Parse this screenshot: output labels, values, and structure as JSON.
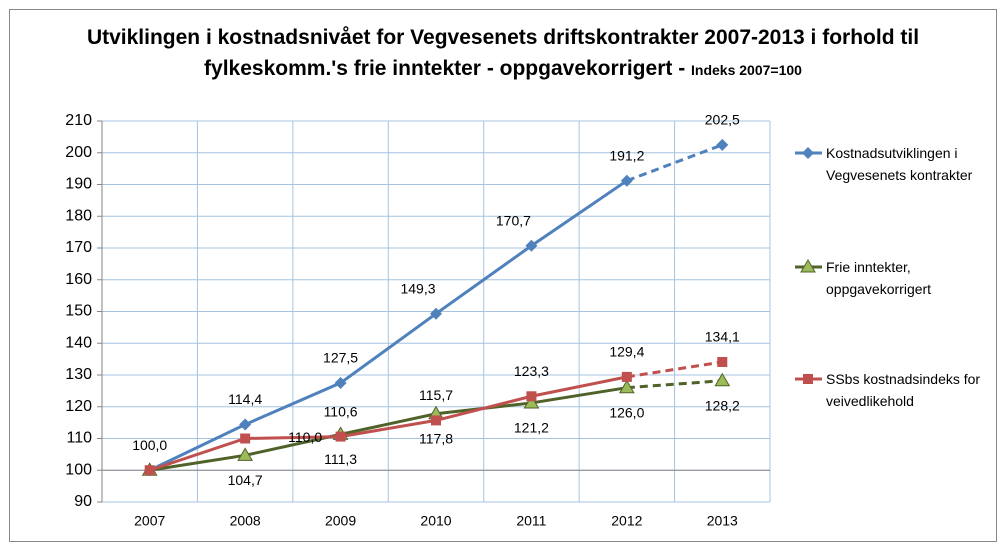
{
  "chart_data": {
    "type": "line",
    "title": "Utviklingen i kostnadsnivået for Vegvesenets driftskontrakter 2007-2013  i forhold til fylkeskomm.'s frie inntekter - oppgavekorrigert -",
    "subtitle": "Indeks 2007=100",
    "categories": [
      "2007",
      "2008",
      "2009",
      "2010",
      "2011",
      "2012",
      "2013"
    ],
    "ylim": [
      90,
      210
    ],
    "yticks": [
      90,
      100,
      110,
      120,
      130,
      140,
      150,
      160,
      170,
      180,
      190,
      200,
      210
    ],
    "grid": true,
    "legend": "right",
    "series": [
      {
        "name": "Kostnadsutviklingen i Vegvesenets kontrakter",
        "color": "#4f81bd",
        "marker": "diamond",
        "label_position": "above",
        "dashed_last_segment": true,
        "values": [
          100.0,
          114.4,
          127.5,
          149.3,
          170.7,
          191.2,
          202.5
        ],
        "value_labels": [
          "100,0",
          "114,4",
          "127,5",
          "149,3",
          "170,7",
          "191,2",
          "202,5"
        ]
      },
      {
        "name": "Frie inntekter, oppgavekorrigert",
        "color": "#4f6228",
        "marker": "triangle",
        "label_position": "below",
        "dashed_last_segment": true,
        "values": [
          100.0,
          104.7,
          111.3,
          117.8,
          121.2,
          126.0,
          128.2
        ],
        "value_labels": [
          null,
          "104,7",
          "111,3",
          "117,8",
          "121,2",
          "126,0",
          "128,2"
        ]
      },
      {
        "name": "SSbs kostnadsindeks for veivedlikehold",
        "color": "#c0504d",
        "marker": "square",
        "label_position": "above",
        "dashed_last_segment": true,
        "values": [
          100.0,
          110.0,
          110.6,
          115.7,
          123.3,
          129.4,
          134.1
        ],
        "value_labels": [
          null,
          "110,0",
          "110,6",
          "115,7",
          "123,3",
          "129,4",
          "134,1"
        ]
      }
    ]
  }
}
